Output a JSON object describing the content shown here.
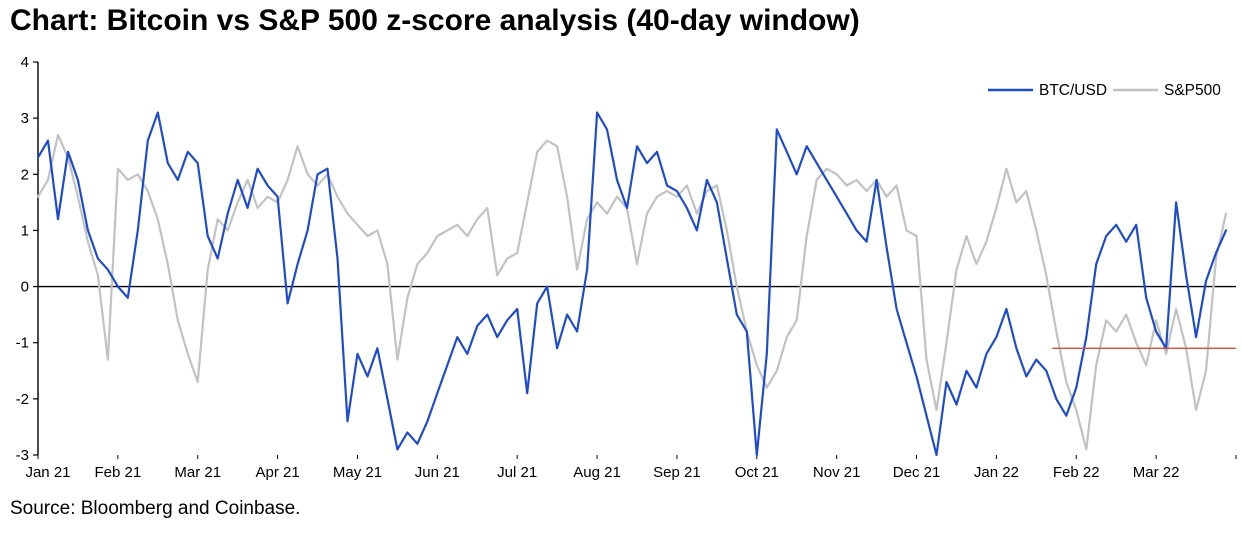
{
  "page": {
    "title": "Chart: Bitcoin vs S&P 500 z-score analysis (40-day window)",
    "source": "Source: Bloomberg and Coinbase."
  },
  "legend": {
    "items": [
      {
        "label": "BTC/USD",
        "color": "#1f4ccc"
      },
      {
        "label": "S&P500",
        "color": "#c2c2c2"
      }
    ]
  },
  "chart_data": {
    "type": "line",
    "title": "Chart: Bitcoin vs S&P 500 z-score analysis (40-day window)",
    "xlabel": "",
    "ylabel": "",
    "ylim": [
      -3,
      4
    ],
    "y_ticks": [
      4,
      3,
      2,
      1,
      0,
      -1,
      -2,
      -3
    ],
    "grid": false,
    "legend_position": "top-right",
    "x_tick_labels": [
      "Jan 21",
      "Feb 21",
      "Mar 21",
      "Apr 21",
      "May 21",
      "Jun 21",
      "Jul 21",
      "Aug 21",
      "Sep 21",
      "Oct 21",
      "Nov 21",
      "Dec 21",
      "Jan 22",
      "Feb 22",
      "Mar 22"
    ],
    "x_months_total": 15,
    "points_per_month": 8,
    "zero_line": true,
    "reference_line": {
      "y": -1.1,
      "x_start_month": 12.7,
      "x_end_month": 15,
      "color": "#d94f3c"
    },
    "series": [
      {
        "name": "S&P500",
        "color": "#c2c2c2",
        "width": 2.2,
        "values": [
          1.6,
          1.9,
          2.7,
          2.3,
          1.6,
          0.8,
          0.2,
          -1.3,
          2.1,
          1.9,
          2.0,
          1.7,
          1.2,
          0.4,
          -0.6,
          -1.2,
          -1.7,
          0.3,
          1.2,
          1.0,
          1.5,
          1.9,
          1.4,
          1.6,
          1.5,
          1.9,
          2.5,
          2.0,
          1.8,
          2.0,
          1.6,
          1.3,
          1.1,
          0.9,
          1.0,
          0.4,
          -1.3,
          -0.2,
          0.4,
          0.6,
          0.9,
          1.0,
          1.1,
          0.9,
          1.2,
          1.4,
          0.2,
          0.5,
          0.6,
          1.5,
          2.4,
          2.6,
          2.5,
          1.6,
          0.3,
          1.2,
          1.5,
          1.3,
          1.6,
          1.4,
          0.4,
          1.3,
          1.6,
          1.7,
          1.6,
          1.8,
          1.3,
          1.7,
          1.8,
          1.0,
          0.0,
          -0.8,
          -1.4,
          -1.8,
          -1.5,
          -0.9,
          -0.6,
          0.9,
          1.9,
          2.1,
          2.0,
          1.8,
          1.9,
          1.7,
          1.9,
          1.6,
          1.8,
          1.0,
          0.9,
          -1.3,
          -2.2,
          -1.0,
          0.3,
          0.9,
          0.4,
          0.8,
          1.4,
          2.1,
          1.5,
          1.7,
          1.0,
          0.2,
          -0.8,
          -1.7,
          -2.2,
          -2.9,
          -1.4,
          -0.6,
          -0.8,
          -0.5,
          -1.0,
          -1.4,
          -0.6,
          -1.2,
          -0.4,
          -1.1,
          -2.2,
          -1.5,
          0.5,
          1.3
        ]
      },
      {
        "name": "BTC/USD",
        "color": "#1f4ccc",
        "width": 2.2,
        "values": [
          2.3,
          2.6,
          1.2,
          2.4,
          1.9,
          1.0,
          0.5,
          0.3,
          0.0,
          -0.2,
          1.0,
          2.6,
          3.1,
          2.2,
          1.9,
          2.4,
          2.2,
          0.9,
          0.5,
          1.3,
          1.9,
          1.4,
          2.1,
          1.8,
          1.6,
          -0.3,
          0.4,
          1.0,
          2.0,
          2.1,
          0.5,
          -2.4,
          -1.2,
          -1.6,
          -1.1,
          -2.0,
          -2.9,
          -2.6,
          -2.8,
          -2.4,
          -1.9,
          -1.4,
          -0.9,
          -1.2,
          -0.7,
          -0.5,
          -0.9,
          -0.6,
          -0.4,
          -1.9,
          -0.3,
          0.0,
          -1.1,
          -0.5,
          -0.8,
          0.3,
          3.1,
          2.8,
          1.9,
          1.4,
          2.5,
          2.2,
          2.4,
          1.8,
          1.7,
          1.4,
          1.0,
          1.9,
          1.5,
          0.5,
          -0.5,
          -0.8,
          -3.0,
          -1.2,
          2.8,
          2.4,
          2.0,
          2.5,
          2.2,
          1.9,
          1.6,
          1.3,
          1.0,
          0.8,
          1.9,
          0.7,
          -0.4,
          -1.0,
          -1.6,
          -2.3,
          -3.0,
          -1.7,
          -2.1,
          -1.5,
          -1.8,
          -1.2,
          -0.9,
          -0.4,
          -1.1,
          -1.6,
          -1.3,
          -1.5,
          -2.0,
          -2.3,
          -1.8,
          -0.9,
          0.4,
          0.9,
          1.1,
          0.8,
          1.1,
          -0.2,
          -0.8,
          -1.1,
          1.5,
          0.2,
          -0.9,
          0.1,
          0.6,
          1.0
        ]
      }
    ]
  }
}
